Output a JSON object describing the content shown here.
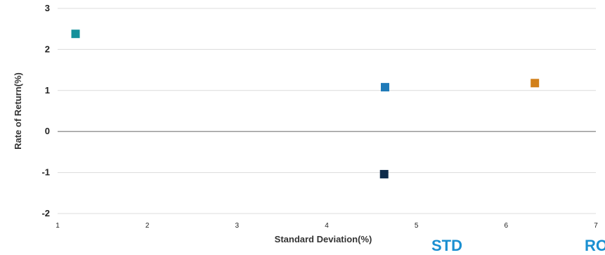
{
  "chart_data": {
    "type": "scatter",
    "xlabel": "Standard Deviation(%)",
    "ylabel": "Rate of Return(%)",
    "xlim": [
      1,
      7
    ],
    "ylim": [
      -2,
      3
    ],
    "x_ticks": [
      "1",
      "2",
      "3",
      "4",
      "5",
      "6",
      "7"
    ],
    "y_ticks": [
      "3",
      "2",
      "1",
      "0",
      "-1",
      "-2"
    ],
    "grid": "horizontal",
    "points": [
      {
        "x": 1.2,
        "y": 2.38,
        "color": "#14919b"
      },
      {
        "x": 4.65,
        "y": 1.08,
        "color": "#1f7ab8"
      },
      {
        "x": 6.32,
        "y": 1.18,
        "color": "#d2801a"
      },
      {
        "x": 4.64,
        "y": -1.04,
        "color": "#0d2b4a"
      }
    ]
  },
  "footer": {
    "partial_label_left": "STD",
    "partial_label_right": "RO"
  }
}
